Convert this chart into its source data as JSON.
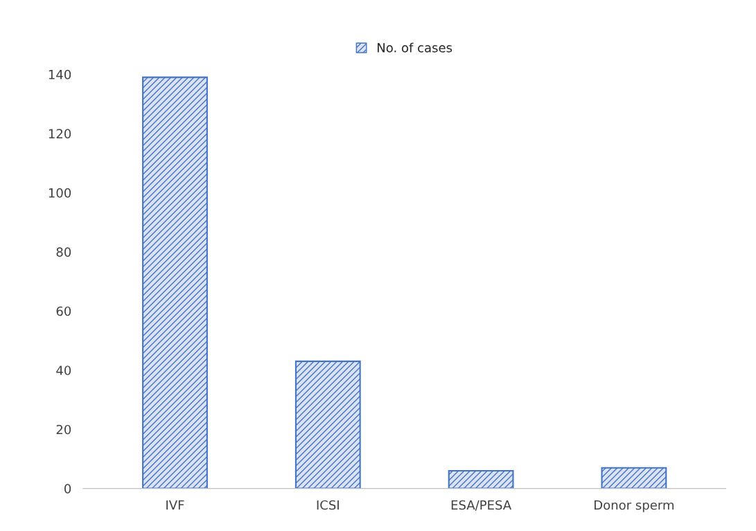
{
  "chart_data": {
    "type": "bar",
    "categories": [
      "IVF",
      "ICSI",
      "ESA/PESA",
      "Donor sperm"
    ],
    "series": [
      {
        "name": "No. of cases",
        "color": "#4472c4",
        "values": [
          139,
          43,
          6,
          7
        ]
      }
    ],
    "ylim": [
      0,
      140
    ],
    "yticks": [
      0,
      20,
      40,
      60,
      80,
      100,
      120,
      140
    ],
    "legend": "top",
    "grid": false
  }
}
